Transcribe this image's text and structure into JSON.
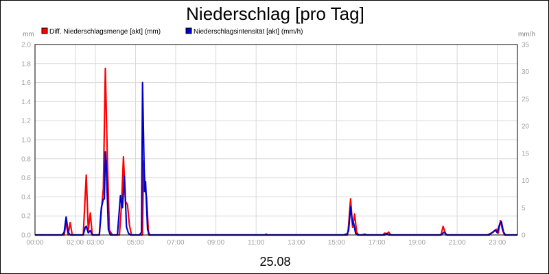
{
  "chart_data": {
    "type": "line",
    "title": "Niederschlag [pro Tag]",
    "date_label": "25.08",
    "y_left_unit": "mm",
    "y_right_unit": "mm/h",
    "y_left_lim": [
      0,
      2.0
    ],
    "y_right_lim": [
      0,
      35
    ],
    "y_left_ticks": [
      "0.0",
      "0.2",
      "0.4",
      "0.6",
      "0.8",
      "1.0",
      "1.2",
      "1.4",
      "1.6",
      "1.8",
      "2.0"
    ],
    "y_right_ticks": [
      "0",
      "5",
      "10",
      "15",
      "20",
      "25",
      "30",
      "35"
    ],
    "x_ticks": [
      "00:00",
      "02:00",
      "03:00",
      "05:00",
      "07:00",
      "09:00",
      "11:00",
      "13:00",
      "15:00",
      "17:00",
      "19:00",
      "21:00",
      "23:00"
    ],
    "x_tick_hours": [
      0,
      2,
      3,
      5,
      7,
      9,
      11,
      13,
      15,
      17,
      19,
      21,
      23
    ],
    "x_lim_hours": [
      0,
      24
    ],
    "grid": true,
    "legend_position": "top",
    "series": [
      {
        "name": "Diff. Niederschlagsmenge [akt] (mm)",
        "color": "#ff0000",
        "axis": "left",
        "points": [
          [
            0,
            0
          ],
          [
            1.45,
            0
          ],
          [
            1.55,
            0.13
          ],
          [
            1.65,
            0
          ],
          [
            1.75,
            0.13
          ],
          [
            1.85,
            0
          ],
          [
            2.4,
            0
          ],
          [
            2.55,
            0.63
          ],
          [
            2.65,
            0.05
          ],
          [
            2.75,
            0.23
          ],
          [
            2.85,
            0
          ],
          [
            3.2,
            0
          ],
          [
            3.3,
            0.25
          ],
          [
            3.4,
            0.49
          ],
          [
            3.5,
            1.75
          ],
          [
            3.6,
            0.8
          ],
          [
            3.7,
            0.05
          ],
          [
            3.85,
            0
          ],
          [
            4.2,
            0
          ],
          [
            4.3,
            0.3
          ],
          [
            4.4,
            0.82
          ],
          [
            4.5,
            0.35
          ],
          [
            4.6,
            0.32
          ],
          [
            4.7,
            0.1
          ],
          [
            4.8,
            0
          ],
          [
            5.2,
            0
          ],
          [
            5.35,
            0
          ],
          [
            5.4,
            0.78
          ],
          [
            5.5,
            0.45
          ],
          [
            5.55,
            0.4
          ],
          [
            5.65,
            0
          ],
          [
            11.45,
            0
          ],
          [
            11.5,
            0.01
          ],
          [
            11.55,
            0
          ],
          [
            15.35,
            0
          ],
          [
            15.45,
            0.01
          ],
          [
            15.55,
            0
          ],
          [
            15.6,
            0.1
          ],
          [
            15.7,
            0.38
          ],
          [
            15.8,
            0.08
          ],
          [
            15.9,
            0.22
          ],
          [
            16.0,
            0.03
          ],
          [
            16.1,
            0
          ],
          [
            16.3,
            0
          ],
          [
            16.4,
            0.01
          ],
          [
            16.5,
            0
          ],
          [
            17.3,
            0
          ],
          [
            17.4,
            0.02
          ],
          [
            17.5,
            0.01
          ],
          [
            17.6,
            0.03
          ],
          [
            17.7,
            0
          ],
          [
            20.2,
            0
          ],
          [
            20.3,
            0.09
          ],
          [
            20.45,
            0
          ],
          [
            22.5,
            0
          ],
          [
            22.8,
            0.03
          ],
          [
            22.95,
            0.06
          ],
          [
            23.05,
            0.02
          ],
          [
            23.15,
            0.15
          ],
          [
            23.25,
            0.06
          ],
          [
            23.35,
            0
          ],
          [
            24,
            0
          ]
        ]
      },
      {
        "name": "Niederschlagsintensität [akt] (mm/h)",
        "color": "#0000cc",
        "axis": "right",
        "points": [
          [
            0,
            0
          ],
          [
            1.35,
            0
          ],
          [
            1.45,
            0.5
          ],
          [
            1.55,
            3.3
          ],
          [
            1.65,
            0.5
          ],
          [
            1.75,
            0
          ],
          [
            1.85,
            0
          ],
          [
            2.4,
            0
          ],
          [
            2.5,
            1.4
          ],
          [
            2.55,
            1.6
          ],
          [
            2.65,
            0.4
          ],
          [
            2.75,
            0.8
          ],
          [
            2.85,
            0
          ],
          [
            3.2,
            0
          ],
          [
            3.3,
            5.0
          ],
          [
            3.4,
            6.6
          ],
          [
            3.45,
            6.6
          ],
          [
            3.5,
            15.3
          ],
          [
            3.55,
            12.5
          ],
          [
            3.65,
            1.0
          ],
          [
            3.75,
            0
          ],
          [
            4.1,
            0
          ],
          [
            4.25,
            7.2
          ],
          [
            4.35,
            5.0
          ],
          [
            4.45,
            10.8
          ],
          [
            4.55,
            1.5
          ],
          [
            4.65,
            0.3
          ],
          [
            4.75,
            0
          ],
          [
            5.2,
            0
          ],
          [
            5.3,
            0.5
          ],
          [
            5.35,
            28.0
          ],
          [
            5.45,
            8.0
          ],
          [
            5.5,
            9.8
          ],
          [
            5.6,
            1.0
          ],
          [
            5.7,
            0
          ],
          [
            15.5,
            0
          ],
          [
            15.6,
            0.8
          ],
          [
            15.7,
            5.2
          ],
          [
            15.8,
            2.0
          ],
          [
            15.85,
            2.2
          ],
          [
            15.95,
            0.3
          ],
          [
            16.05,
            0
          ],
          [
            17.4,
            0
          ],
          [
            17.5,
            0.3
          ],
          [
            17.6,
            0
          ],
          [
            20.2,
            0
          ],
          [
            20.35,
            0.5
          ],
          [
            20.5,
            0
          ],
          [
            22.6,
            0
          ],
          [
            22.8,
            0.6
          ],
          [
            22.9,
            0.9
          ],
          [
            23.0,
            0.4
          ],
          [
            23.1,
            1.8
          ],
          [
            23.2,
            2.5
          ],
          [
            23.3,
            0.6
          ],
          [
            23.4,
            0
          ],
          [
            24,
            0
          ]
        ]
      }
    ]
  }
}
